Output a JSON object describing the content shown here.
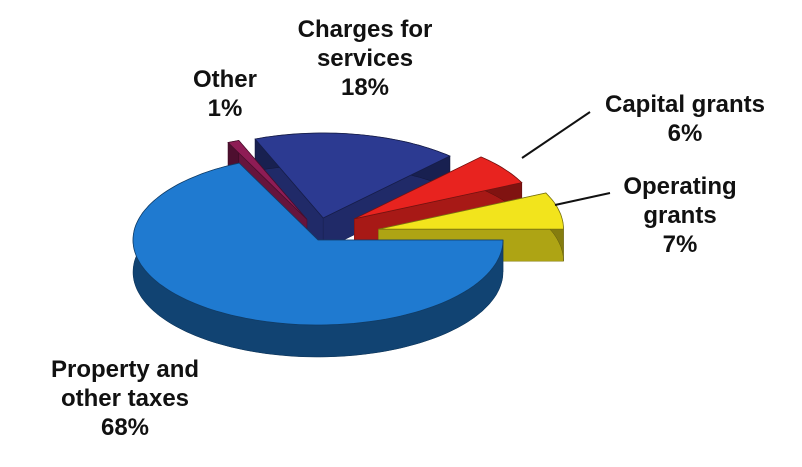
{
  "chart_data": {
    "type": "pie",
    "categories": [
      "Property and other taxes",
      "Other",
      "Charges for services",
      "Capital grants",
      "Operating grants"
    ],
    "values": [
      68,
      1,
      18,
      6,
      7
    ],
    "value_labels": [
      "68%",
      "1%",
      "18%",
      "6%",
      "7%"
    ],
    "colors": [
      "#1f7ad0",
      "#8e1c55",
      "#2c3a91",
      "#e8231f",
      "#f2e41c"
    ]
  }
}
